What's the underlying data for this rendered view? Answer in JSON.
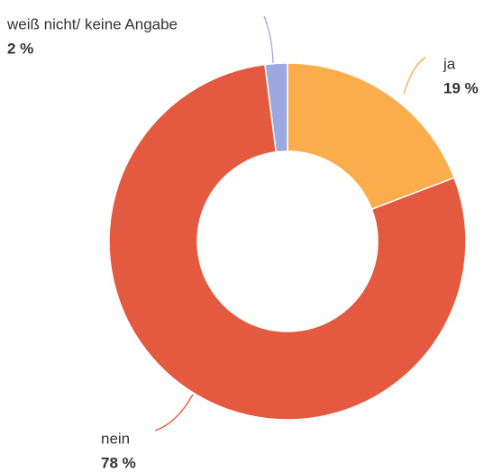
{
  "chart_data": {
    "type": "donut",
    "categories": [
      "ja",
      "nein",
      "weiß nicht/ keine Angabe"
    ],
    "values": [
      19,
      78,
      2
    ],
    "value_labels": [
      "19 %",
      "78 %",
      "2 %"
    ],
    "colors": [
      "#fbad4c",
      "#e35a40",
      "#9ca9e1"
    ]
  }
}
